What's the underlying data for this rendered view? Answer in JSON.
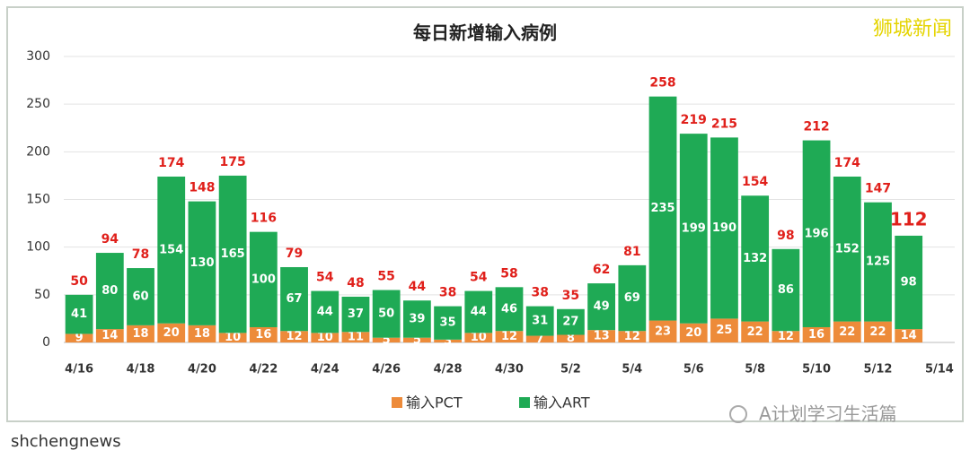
{
  "chart_data": {
    "type": "stacked_bar",
    "title": "每日新增输入病例",
    "categories": [
      "4/16",
      null,
      "4/18",
      null,
      "4/20",
      null,
      "4/22",
      null,
      "4/24",
      null,
      "4/26",
      null,
      "4/28",
      null,
      "4/30",
      null,
      "5/2",
      null,
      "5/4",
      null,
      "5/6",
      null,
      "5/8",
      null,
      "5/10",
      null,
      "5/12",
      null,
      "5/14"
    ],
    "series": [
      {
        "name": "输入PCT",
        "color": "#ed8b3a",
        "values": [
          9,
          14,
          18,
          20,
          18,
          10,
          16,
          12,
          10,
          11,
          5,
          5,
          3,
          10,
          12,
          7,
          8,
          13,
          12,
          23,
          20,
          25,
          22,
          12,
          16,
          22,
          22,
          14,
          null
        ]
      },
      {
        "name": "输入ART",
        "color": "#1faa55",
        "values": [
          41,
          80,
          60,
          154,
          130,
          165,
          100,
          67,
          44,
          37,
          50,
          39,
          35,
          44,
          46,
          31,
          27,
          49,
          69,
          235,
          199,
          190,
          132,
          86,
          196,
          152,
          125,
          98,
          null
        ]
      }
    ],
    "totals": [
      50,
      94,
      78,
      174,
      148,
      175,
      116,
      79,
      54,
      48,
      55,
      44,
      38,
      54,
      58,
      38,
      35,
      62,
      81,
      258,
      219,
      215,
      154,
      98,
      212,
      174,
      147,
      112,
      null
    ],
    "ylim": [
      0,
      300
    ],
    "yticks": [
      0,
      50,
      100,
      150,
      200,
      250,
      300
    ],
    "grid": true
  },
  "watermark": "狮城新闻",
  "account": "A计划学习生活篇",
  "footer": "shchengnews"
}
